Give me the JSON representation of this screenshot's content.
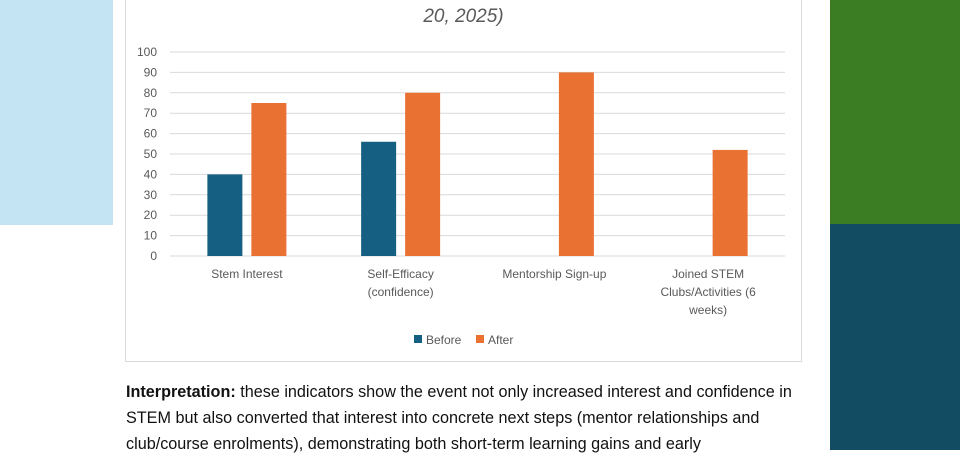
{
  "colors": {
    "left_panel": "#c5e4f3",
    "right_top": "#3a7d23",
    "right_bottom": "#124c62",
    "before": "#156082",
    "after": "#e97132"
  },
  "chart_data": {
    "type": "bar",
    "title": "20, 2025)",
    "categories": [
      "Stem Interest",
      "Self-Efficacy (confidence)",
      "Mentorship Sign-up",
      "Joined STEM Clubs/Activities (6 weeks)"
    ],
    "category_lines": [
      [
        "Stem Interest"
      ],
      [
        "Self-Efficacy",
        "(confidence)"
      ],
      [
        "Mentorship Sign-up"
      ],
      [
        "Joined STEM",
        "Clubs/Activities (6",
        "weeks)"
      ]
    ],
    "series": [
      {
        "name": "Before",
        "values": [
          40,
          56,
          null,
          null
        ]
      },
      {
        "name": "After",
        "values": [
          75,
          80,
          90,
          52
        ]
      }
    ],
    "ylim": [
      0,
      100
    ],
    "yticks": [
      0,
      10,
      20,
      30,
      40,
      50,
      60,
      70,
      80,
      90,
      100
    ],
    "grid": true,
    "legend": "bottom"
  },
  "text": {
    "bold": "Interpretation:",
    "body": " these indicators show the event not only increased interest and confidence in STEM but also converted that interest into concrete next steps (mentor relationships and club/course enrolments), demonstrating both short-term learning gains and early"
  }
}
